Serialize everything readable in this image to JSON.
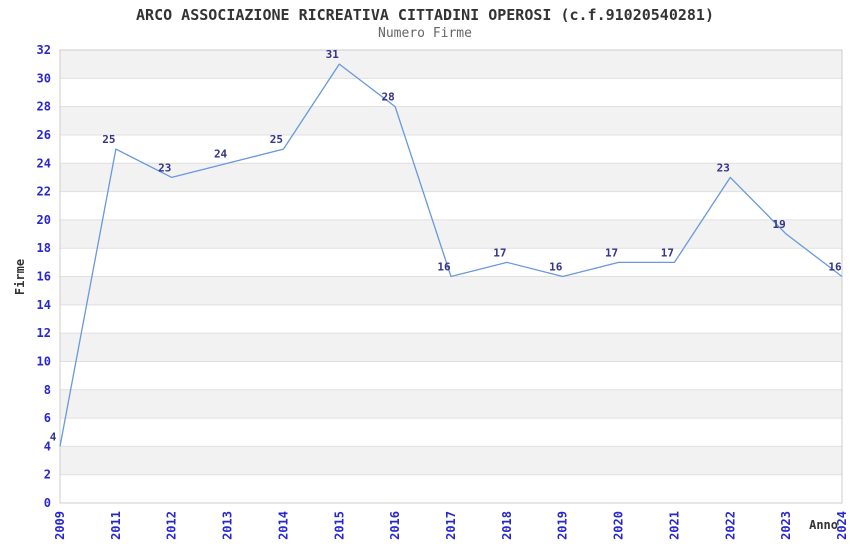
{
  "chart_data": {
    "type": "line",
    "title": "ARCO ASSOCIAZIONE RICREATIVA CITTADINI OPEROSI (c.f.91020540281)",
    "subtitle": "Numero Firme",
    "xlabel": "Anno",
    "ylabel": "Firme",
    "categories": [
      "2009",
      "2011",
      "2012",
      "2013",
      "2014",
      "2015",
      "2016",
      "2017",
      "2018",
      "2019",
      "2020",
      "2021",
      "2022",
      "2023",
      "2024"
    ],
    "values": [
      4,
      25,
      23,
      24,
      25,
      31,
      28,
      16,
      17,
      16,
      17,
      17,
      23,
      19,
      16
    ],
    "ylim": [
      0,
      32
    ],
    "ytick_step": 2,
    "grid": "horizontal-bands-alternating",
    "legend": "none",
    "colors": {
      "line": "#6699dd",
      "tick_label": "#2727cf",
      "point_label": "#333388",
      "band_gray": "#f2f2f2",
      "band_white": "#ffffff",
      "grid_line": "#e0e0e0",
      "plot_border": "#cccccc",
      "title": "#333333",
      "subtitle": "#666666",
      "axis_label": "#333333",
      "background": "#ffffff"
    }
  }
}
